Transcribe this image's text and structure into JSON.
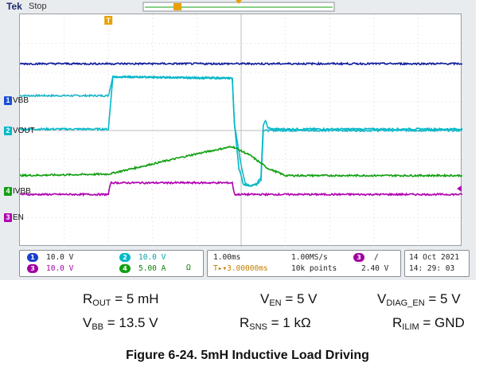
{
  "scope": {
    "brand": "Tek",
    "acq_state": "Stop",
    "trigger_marker": "T"
  },
  "colors": {
    "ch1": "#1ab6c9",
    "ch2": "#00b8c8",
    "ch3": "#b000b0",
    "ch4": "#10a010",
    "ref_blue": "#101c9a",
    "grid": "#b8bcc2"
  },
  "channels": {
    "ch1_tag": "1",
    "ch1_name": "VBB",
    "ch2_tag": "2",
    "ch2_name": "VOUT",
    "ch4_tag": "4",
    "ch4_name": "IVBB",
    "ch3_tag": "3",
    "ch3_name": "EN"
  },
  "status": {
    "ch1_num": "1",
    "ch1_scale": "10.0 V",
    "ch2_num": "2",
    "ch2_scale": "10.0 V",
    "ch3_num": "3",
    "ch3_scale": "10.0 V",
    "ch4_num": "4",
    "ch4_scale": "5.00 A",
    "timebase": "1.00ms",
    "trig_pos": "T▸▾3.00000ms",
    "sample_rate": "1.00MS/s",
    "record_len": "10k points",
    "trig_ch_num": "3",
    "trig_slope": "/",
    "trig_level": "2.40 V",
    "date": "14 Oct   2021",
    "time": "14: 29: 03"
  },
  "conditions": {
    "r_out": {
      "sym": "R",
      "sub": "OUT",
      "val": " = 5 mH"
    },
    "v_en": {
      "sym": "V",
      "sub": "EN",
      "val": " = 5 V"
    },
    "v_diag_en": {
      "sym": "V",
      "sub": "DIAG_EN",
      "val": " = 5 V"
    },
    "v_bb": {
      "sym": "V",
      "sub": "BB",
      "val": " = 13.5 V"
    },
    "r_sns": {
      "sym": "R",
      "sub": "SNS",
      "val": " = 1 kΩ"
    },
    "r_ilim": {
      "sym": "R",
      "sub": "ILIM",
      "val": " = GND"
    }
  },
  "figure_title": "Figure 6-24. 5mH Inductive Load Driving",
  "chart_data": {
    "type": "line",
    "x_unit": "divisions",
    "xlim": [
      0,
      10
    ],
    "ylim": [
      -4,
      4
    ],
    "grid": true,
    "series": [
      {
        "name": "VBB",
        "color": "#1ab6c9",
        "x": [
          0,
          2.0,
          2.1,
          4.8,
          4.85,
          5.0,
          5.1,
          5.2,
          5.35,
          5.45,
          5.5,
          10
        ],
        "y": [
          1.2,
          1.2,
          1.85,
          1.8,
          0.2,
          -1.2,
          -1.85,
          -1.9,
          -1.85,
          -1.7,
          0.0,
          0.0
        ]
      },
      {
        "name": "VOUT",
        "color": "#00b8c8",
        "x": [
          0,
          2.0,
          2.1,
          4.8,
          4.85,
          4.95,
          5.05,
          5.2,
          5.35,
          5.45,
          5.5,
          5.55,
          5.6,
          5.7,
          10
        ],
        "y": [
          0.05,
          0.05,
          1.85,
          1.8,
          0.2,
          -1.3,
          -1.85,
          -1.9,
          -1.85,
          -1.6,
          0.2,
          0.35,
          0.1,
          0.05,
          0.05
        ]
      },
      {
        "name": "IVBB",
        "color": "#10a010",
        "x": [
          0,
          2.0,
          3.0,
          4.0,
          4.8,
          5.2,
          5.6,
          6.0,
          10
        ],
        "y": [
          -1.55,
          -1.5,
          -1.15,
          -0.8,
          -0.55,
          -0.85,
          -1.3,
          -1.55,
          -1.55
        ]
      },
      {
        "name": "EN",
        "color": "#b000b0",
        "x": [
          0,
          2.0,
          2.05,
          4.8,
          4.85,
          10
        ],
        "y": [
          -2.2,
          -2.2,
          -1.8,
          -1.8,
          -2.2,
          -2.2
        ]
      },
      {
        "name": "",
        "color": "#101c9a",
        "x": [
          0,
          10
        ],
        "y": [
          2.3,
          2.3
        ]
      }
    ]
  }
}
